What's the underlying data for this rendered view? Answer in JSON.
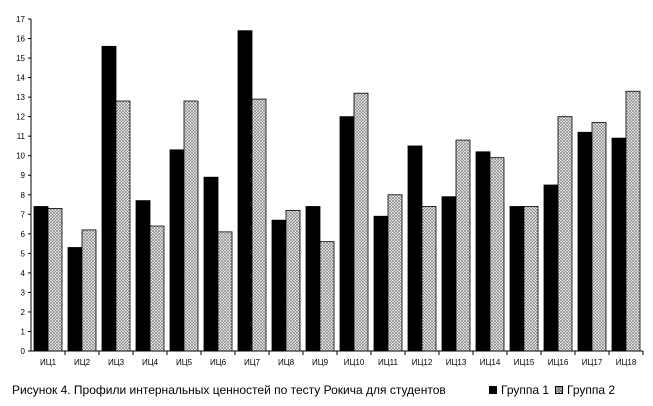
{
  "chart_data": {
    "type": "bar",
    "title": "Рисунок 4. Профили интернальных ценностей по тесту Рокича для студентов",
    "xlabel": "",
    "ylabel": "",
    "ylim": [
      0,
      17
    ],
    "yticks": [
      0,
      1,
      2,
      3,
      4,
      5,
      6,
      7,
      8,
      9,
      10,
      11,
      12,
      13,
      14,
      15,
      16,
      17
    ],
    "grid": false,
    "legend_position": "bottom-right",
    "categories": [
      "ИЦ1",
      "ИЦ2",
      "ИЦ3",
      "ИЦ4",
      "ИЦ5",
      "ИЦ6",
      "ИЦ7",
      "ИЦ8",
      "ИЦ9",
      "ИЦ10",
      "ИЦ11",
      "ИЦ12",
      "ИЦ13",
      "ИЦ14",
      "ИЦ15",
      "ИЦ16",
      "ИЦ17",
      "ИЦ18"
    ],
    "series": [
      {
        "name": "Группа 1",
        "color": "#000000",
        "values": [
          7.4,
          5.3,
          15.6,
          7.7,
          10.3,
          8.9,
          16.4,
          6.7,
          7.4,
          12.0,
          6.9,
          10.5,
          7.9,
          10.2,
          7.4,
          8.5,
          11.2,
          10.9
        ]
      },
      {
        "name": "Группа 2",
        "color": "#c8c8c8",
        "pattern": "crosshatch",
        "values": [
          7.3,
          6.2,
          12.8,
          6.4,
          12.8,
          6.1,
          12.9,
          7.2,
          5.6,
          13.2,
          8.0,
          7.4,
          10.8,
          9.9,
          7.4,
          12.0,
          11.7,
          13.3
        ]
      }
    ]
  }
}
